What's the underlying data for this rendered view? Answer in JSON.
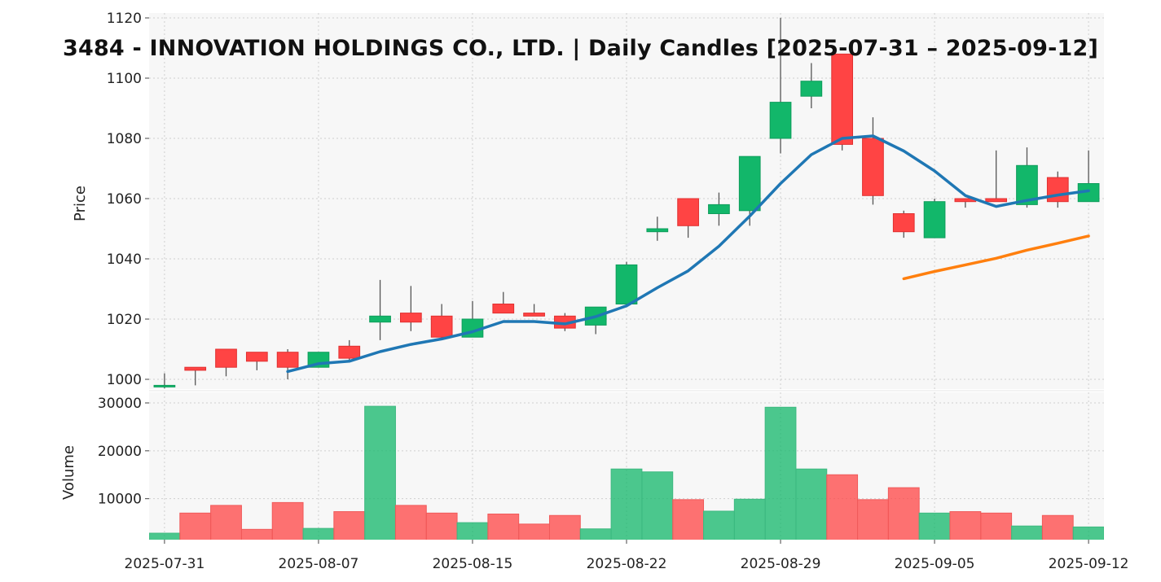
{
  "chart_data": {
    "type": "candlestick",
    "title": "3484 - INNOVATION HOLDINGS CO., LTD. | Daily Candles [2025-07-31 – 2025-09-12]",
    "price_panel": {
      "ylabel": "Price",
      "ylim": [
        997,
        1120
      ],
      "yticks": [
        1000,
        1020,
        1040,
        1060,
        1080,
        1100,
        1120
      ],
      "grid": true
    },
    "volume_panel": {
      "ylabel": "Volume",
      "ylim": [
        0,
        31500
      ],
      "yticks": [
        10000,
        20000,
        30000
      ],
      "grid": true
    },
    "xtick_labels": [
      "2025-07-31",
      "2025-08-07",
      "2025-08-15",
      "2025-08-22",
      "2025-08-29",
      "2025-09-05",
      "2025-09-12"
    ],
    "xtick_indices": [
      0,
      5,
      10,
      15,
      20,
      25,
      30
    ],
    "colors": {
      "up": "#12b76a",
      "down": "#ff4444",
      "ma_short": "#1f77b4",
      "ma_long": "#ff7f0e",
      "panel_bg": "#f7f7f7",
      "grid": "#cfcfcf"
    },
    "candles": [
      {
        "date": "2025-07-31",
        "open": 998,
        "high": 1002,
        "low": 997,
        "close": 998,
        "volume": 2800
      },
      {
        "date": "2025-08-01",
        "open": 1004,
        "high": 1004,
        "low": 998,
        "close": 1003,
        "volume": 7000
      },
      {
        "date": "2025-08-04",
        "open": 1010,
        "high": 1010,
        "low": 1001,
        "close": 1004,
        "volume": 8600
      },
      {
        "date": "2025-08-05",
        "open": 1009,
        "high": 1009,
        "low": 1003,
        "close": 1006,
        "volume": 3600
      },
      {
        "date": "2025-08-06",
        "open": 1009,
        "high": 1010,
        "low": 1000,
        "close": 1004,
        "volume": 9200
      },
      {
        "date": "2025-08-07",
        "open": 1004,
        "high": 1009,
        "low": 1004,
        "close": 1009,
        "volume": 3800
      },
      {
        "date": "2025-08-08",
        "open": 1011,
        "high": 1013,
        "low": 1006,
        "close": 1007,
        "volume": 7300
      },
      {
        "date": "2025-08-12",
        "open": 1019,
        "high": 1033,
        "low": 1013,
        "close": 1021,
        "volume": 29300
      },
      {
        "date": "2025-08-13",
        "open": 1022,
        "high": 1031,
        "low": 1016,
        "close": 1019,
        "volume": 8600
      },
      {
        "date": "2025-08-14",
        "open": 1021,
        "high": 1025,
        "low": 1013,
        "close": 1014,
        "volume": 7000
      },
      {
        "date": "2025-08-15",
        "open": 1014,
        "high": 1026,
        "low": 1014,
        "close": 1020,
        "volume": 5000
      },
      {
        "date": "2025-08-18",
        "open": 1025,
        "high": 1029,
        "low": 1022,
        "close": 1022,
        "volume": 6800
      },
      {
        "date": "2025-08-19",
        "open": 1022,
        "high": 1025,
        "low": 1021,
        "close": 1021,
        "volume": 4700
      },
      {
        "date": "2025-08-20",
        "open": 1021,
        "high": 1022,
        "low": 1016,
        "close": 1017,
        "volume": 6500
      },
      {
        "date": "2025-08-21",
        "open": 1018,
        "high": 1024,
        "low": 1015,
        "close": 1024,
        "volume": 3700
      },
      {
        "date": "2025-08-22",
        "open": 1025,
        "high": 1039,
        "low": 1025,
        "close": 1038,
        "volume": 16200
      },
      {
        "date": "2025-08-25",
        "open": 1049,
        "high": 1054,
        "low": 1046,
        "close": 1050,
        "volume": 15600
      },
      {
        "date": "2025-08-26",
        "open": 1060,
        "high": 1060,
        "low": 1047,
        "close": 1051,
        "volume": 9800
      },
      {
        "date": "2025-08-27",
        "open": 1055,
        "high": 1062,
        "low": 1051,
        "close": 1058,
        "volume": 7400
      },
      {
        "date": "2025-08-28",
        "open": 1056,
        "high": 1074,
        "low": 1051,
        "close": 1074,
        "volume": 9900
      },
      {
        "date": "2025-08-29",
        "open": 1080,
        "high": 1120,
        "low": 1075,
        "close": 1092,
        "volume": 29100
      },
      {
        "date": "2025-09-01",
        "open": 1094,
        "high": 1105,
        "low": 1090,
        "close": 1099,
        "volume": 16200
      },
      {
        "date": "2025-09-02",
        "open": 1108,
        "high": 1108,
        "low": 1076,
        "close": 1078,
        "volume": 15000
      },
      {
        "date": "2025-09-03",
        "open": 1080,
        "high": 1087,
        "low": 1058,
        "close": 1061,
        "volume": 9800
      },
      {
        "date": "2025-09-04",
        "open": 1055,
        "high": 1056,
        "low": 1047,
        "close": 1049,
        "volume": 12300
      },
      {
        "date": "2025-09-05",
        "open": 1047,
        "high": 1060,
        "low": 1047,
        "close": 1059,
        "volume": 7000
      },
      {
        "date": "2025-09-08",
        "open": 1060,
        "high": 1060,
        "low": 1057,
        "close": 1059,
        "volume": 7300
      },
      {
        "date": "2025-09-09",
        "open": 1060,
        "high": 1076,
        "low": 1059,
        "close": 1059,
        "volume": 7000
      },
      {
        "date": "2025-09-10",
        "open": 1058,
        "high": 1077,
        "low": 1057,
        "close": 1071,
        "volume": 4300
      },
      {
        "date": "2025-09-11",
        "open": 1067,
        "high": 1069,
        "low": 1057,
        "close": 1059,
        "volume": 6500
      },
      {
        "date": "2025-09-12",
        "open": 1059,
        "high": 1076,
        "low": 1059,
        "close": 1065,
        "volume": 4100
      }
    ],
    "moving_averages": [
      {
        "color": "#1f77b4",
        "start_index": 4,
        "values": [
          1002.6,
          1005.2,
          1006,
          1009.2,
          1011.6,
          1013.4,
          1015.8,
          1019.2,
          1019.2,
          1018.4,
          1020.8,
          1024.4,
          1030.4,
          1036,
          1044.2,
          1054.2,
          1065,
          1074.6,
          1080,
          1080.8,
          1075.8,
          1069.2,
          1061,
          1057.4,
          1059.4,
          1061.2,
          1062.6
        ]
      },
      {
        "color": "#ff7f0e",
        "start_index": 24,
        "values": [
          1033.4,
          1035.8,
          1038,
          1040.2,
          1042.9,
          1045.2,
          1047.6
        ]
      }
    ]
  }
}
